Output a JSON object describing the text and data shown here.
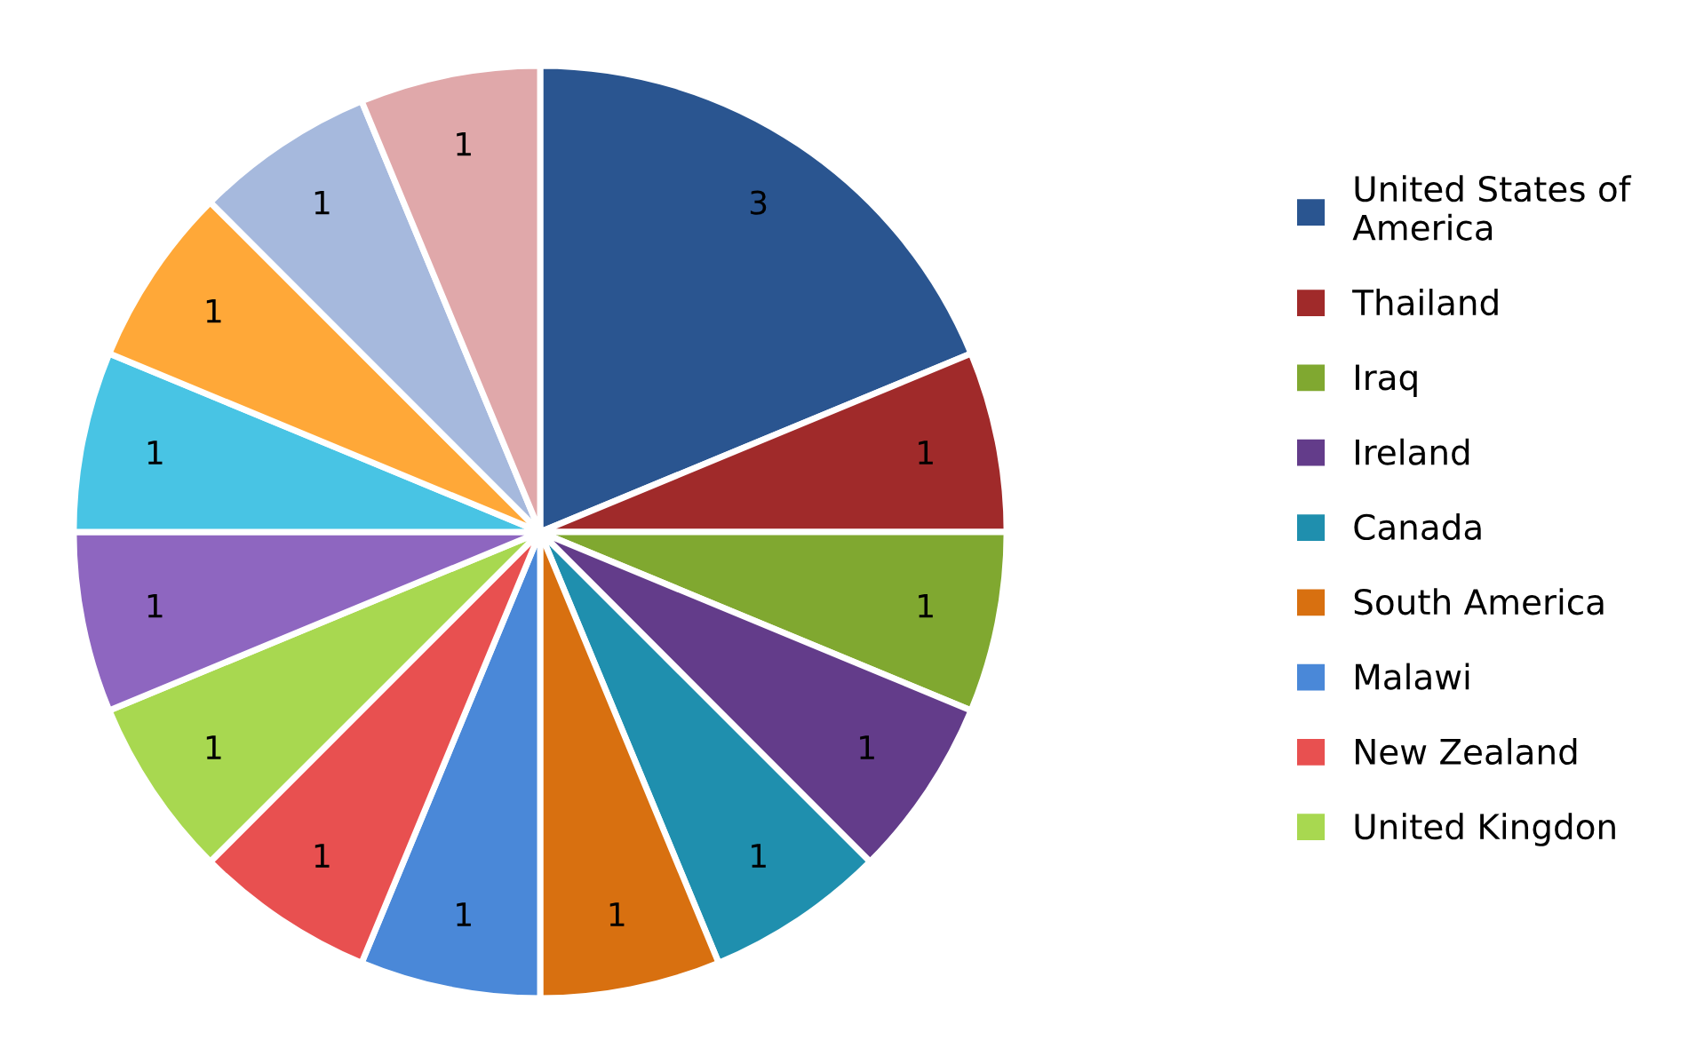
{
  "chart_data": {
    "type": "pie",
    "categories": [
      "United States of America",
      "Thailand",
      "Iraq",
      "Ireland",
      "Canada",
      "South America",
      "Malawi",
      "New Zealand",
      "United Kingdon",
      null,
      null,
      null,
      null,
      null
    ],
    "values": [
      3,
      1,
      1,
      1,
      1,
      1,
      1,
      1,
      1,
      1,
      1,
      1,
      1,
      1
    ],
    "colors": [
      "#2a5590",
      "#a02a2a",
      "#80a830",
      "#633c8a",
      "#1f8fae",
      "#d87010",
      "#4a88d8",
      "#e85050",
      "#a8d850",
      "#8e66c0",
      "#48c4e4",
      "#ffa838",
      "#a6b9dd",
      "#e0a8aa"
    ],
    "data_labels": true,
    "legend": "right"
  }
}
